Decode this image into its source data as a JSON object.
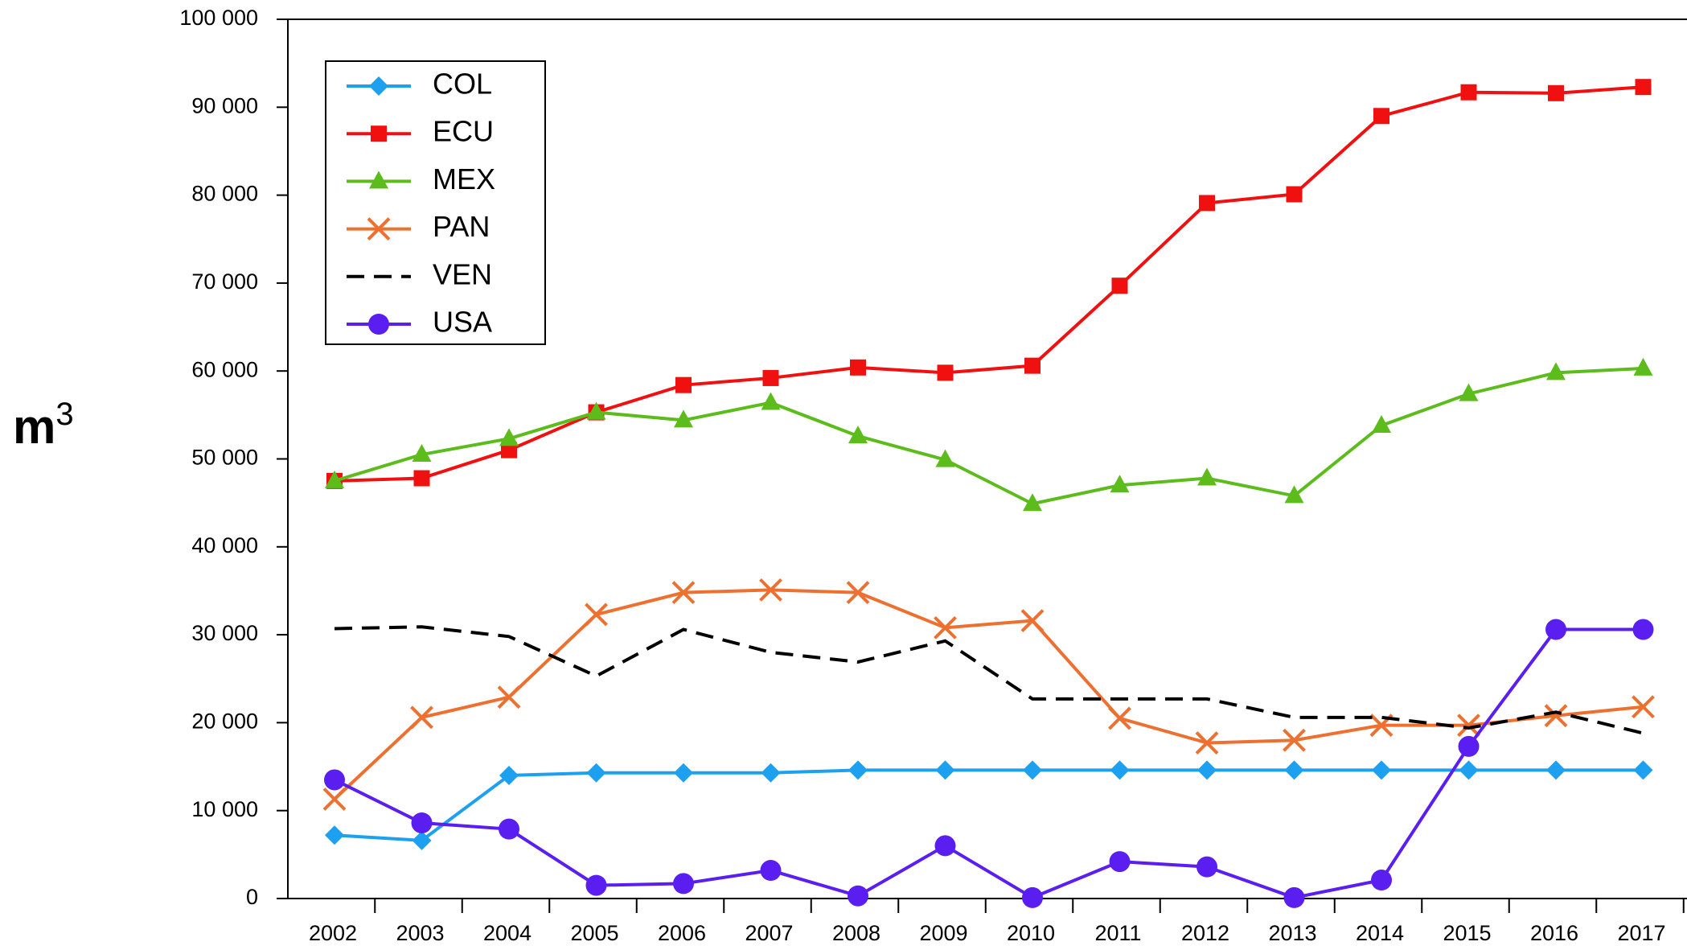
{
  "chart_data": {
    "type": "line",
    "y_label": "m",
    "y_label_sup": "3",
    "categories": [
      "2002",
      "2003",
      "2004",
      "2005",
      "2006",
      "2007",
      "2008",
      "2009",
      "2010",
      "2011",
      "2012",
      "2013",
      "2014",
      "2015",
      "2016",
      "2017"
    ],
    "ylim": [
      0,
      100000
    ],
    "yticks": [
      0,
      {
        "value": 10000,
        "label": "10 000"
      },
      {
        "value": 20000,
        "label": "20 000"
      },
      {
        "value": 30000,
        "label": "30 000"
      },
      {
        "value": 40000,
        "label": "40 000"
      },
      {
        "value": 50000,
        "label": "50 000"
      },
      {
        "value": 60000,
        "label": "60 000"
      },
      {
        "value": 70000,
        "label": "70 000"
      },
      {
        "value": 80000,
        "label": "80 000"
      },
      {
        "value": 90000,
        "label": "90 000"
      },
      {
        "value": 100000,
        "label": "100 000"
      }
    ],
    "legend": "upper left",
    "series": [
      {
        "name": "COL",
        "color": "#1ea0f0",
        "marker": "diamond",
        "values": [
          7200,
          6600,
          14000,
          14300,
          14300,
          14300,
          14600,
          14600,
          14600,
          14600,
          14600,
          14600,
          14600,
          14600,
          14600,
          14600
        ]
      },
      {
        "name": "ECU",
        "color": "#f01010",
        "marker": "square",
        "values": [
          47500,
          47800,
          51000,
          55300,
          58400,
          59200,
          60400,
          59800,
          60600,
          69700,
          79100,
          80100,
          89000,
          91700,
          91600,
          92300
        ]
      },
      {
        "name": "MEX",
        "color": "#5cbc1c",
        "marker": "triangle",
        "values": [
          47500,
          50500,
          52300,
          55300,
          54400,
          56400,
          52600,
          49900,
          44900,
          47000,
          47800,
          45800,
          53800,
          57400,
          59800,
          60300
        ]
      },
      {
        "name": "PAN",
        "color": "#ee7030",
        "marker": "x",
        "values": [
          11300,
          20600,
          22900,
          32300,
          34800,
          35100,
          34800,
          30800,
          31600,
          20500,
          17700,
          18000,
          19700,
          19700,
          20800,
          21800
        ]
      },
      {
        "name": "VEN",
        "color": "#000000",
        "marker": "dash",
        "values": [
          30700,
          30900,
          29800,
          25300,
          30600,
          28000,
          26900,
          29300,
          22700,
          22700,
          22700,
          20600,
          20600,
          19400,
          21200,
          18800
        ]
      },
      {
        "name": "USA",
        "color": "#5a1ef0",
        "marker": "circle",
        "values": [
          13500,
          8600,
          7900,
          1500,
          1700,
          3200,
          300,
          6000,
          100,
          4200,
          3600,
          100,
          2100,
          17300,
          30600,
          30600
        ]
      }
    ]
  }
}
